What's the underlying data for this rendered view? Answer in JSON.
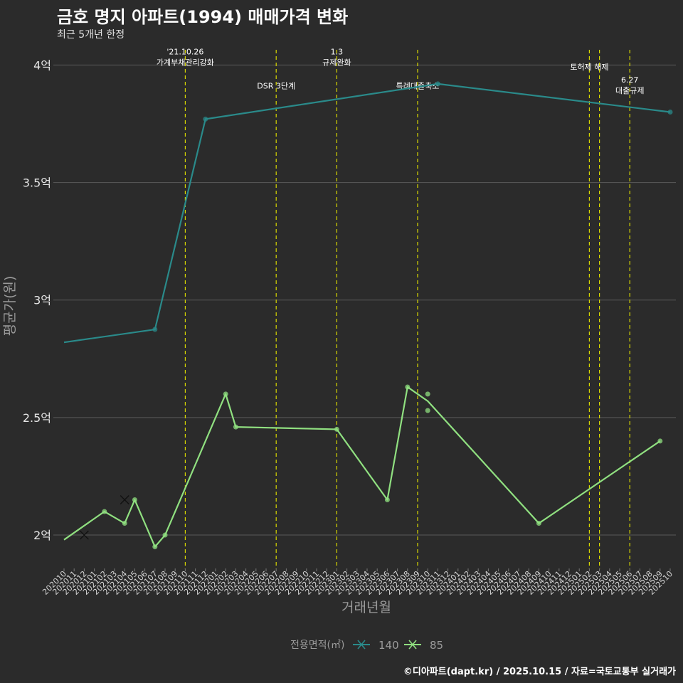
{
  "title": "금호 명지 아파트(1994) 매매가격 변화",
  "subtitle": "최근 5개년 한정",
  "caption": "©디아파트(dapt.kr) / 2025.10.15 / 자료=국토교통부 실거래가",
  "chart_data": {
    "type": "line",
    "xlabel": "거래년월",
    "ylabel": "평균가(원)",
    "ylim": [
      1.87,
      4.08
    ],
    "y_ticks": [
      {
        "value": 2.0,
        "label": "2억"
      },
      {
        "value": 2.5,
        "label": "2.5억"
      },
      {
        "value": 3.0,
        "label": "3억"
      },
      {
        "value": 3.5,
        "label": "3.5억"
      },
      {
        "value": 4.0,
        "label": "4억"
      }
    ],
    "x_categories": [
      "202010",
      "202011",
      "202012",
      "202101",
      "202102",
      "202103",
      "202104",
      "202105",
      "202106",
      "202107",
      "202108",
      "202109",
      "202110",
      "202111",
      "202112",
      "202201",
      "202202",
      "202203",
      "202204",
      "202205",
      "202206",
      "202207",
      "202208",
      "202209",
      "202210",
      "202211",
      "202212",
      "202301",
      "202302",
      "202303",
      "202304",
      "202305",
      "202306",
      "202307",
      "202308",
      "202309",
      "202310",
      "202311",
      "202312",
      "202401",
      "202402",
      "202403",
      "202404",
      "202405",
      "202406",
      "202407",
      "202408",
      "202409",
      "202410",
      "202411",
      "202412",
      "202501",
      "202502",
      "202503",
      "202504",
      "202505",
      "202506",
      "202507",
      "202508",
      "202509",
      "202510"
    ],
    "legend": {
      "title": "전용면적(㎡)",
      "position": "bottom"
    },
    "series": [
      {
        "name": "140",
        "color": "#2a8a8a",
        "line": [
          [
            "202010",
            2.82
          ],
          [
            "202107",
            2.875
          ],
          [
            "202112",
            3.77
          ],
          [
            "202311",
            3.92
          ],
          [
            "202510",
            3.8
          ]
        ],
        "points": [
          [
            "202107",
            2.875
          ],
          [
            "202112",
            3.77
          ],
          [
            "202311",
            3.92
          ],
          [
            "202510",
            3.8
          ]
        ],
        "x_marks": []
      },
      {
        "name": "85",
        "color": "#90e080",
        "line": [
          [
            "202010",
            1.98
          ],
          [
            "202102",
            2.1
          ],
          [
            "202104",
            2.05
          ],
          [
            "202105",
            2.15
          ],
          [
            "202107",
            1.95
          ],
          [
            "202108",
            2.0
          ],
          [
            "202202",
            2.6
          ],
          [
            "202203",
            2.46
          ],
          [
            "202301",
            2.45
          ],
          [
            "202306",
            2.15
          ],
          [
            "202308",
            2.63
          ],
          [
            "202310",
            2.57
          ],
          [
            "202409",
            2.05
          ],
          [
            "202509",
            2.4
          ]
        ],
        "points": [
          [
            "202108",
            2.0
          ],
          [
            "202202",
            2.6
          ],
          [
            "202203",
            2.46
          ],
          [
            "202301",
            2.45
          ],
          [
            "202306",
            2.15
          ],
          [
            "202308",
            2.63
          ],
          [
            "202310",
            2.6
          ],
          [
            "202310",
            2.53
          ],
          [
            "202409",
            2.05
          ],
          [
            "202509",
            2.4
          ],
          [
            "202105",
            2.15
          ],
          [
            "202107",
            1.95
          ],
          [
            "202102",
            2.1
          ],
          [
            "202104",
            2.05
          ]
        ],
        "x_marks": [
          [
            "202012",
            2.0
          ],
          [
            "202104",
            2.15
          ]
        ]
      }
    ],
    "events": [
      {
        "x": "202110",
        "lines": [
          "'21.10.26",
          "가계부채관리강화"
        ],
        "y": 4.0
      },
      {
        "x": "202207",
        "lines": [
          "DSR 3단계"
        ],
        "y": 3.9
      },
      {
        "x": "202301",
        "lines": [
          "1.3",
          "규제완화"
        ],
        "y": 4.0
      },
      {
        "x": "202309",
        "lines": [
          "특례대출축소"
        ],
        "y": 3.9
      },
      {
        "x": "202502",
        "lines": [
          "토허제 해제"
        ],
        "y": 3.98
      },
      {
        "x": "202503",
        "lines": [],
        "y": 0
      },
      {
        "x": "202506",
        "lines": [
          "6.27",
          "대출규제"
        ],
        "y": 3.88
      }
    ]
  }
}
